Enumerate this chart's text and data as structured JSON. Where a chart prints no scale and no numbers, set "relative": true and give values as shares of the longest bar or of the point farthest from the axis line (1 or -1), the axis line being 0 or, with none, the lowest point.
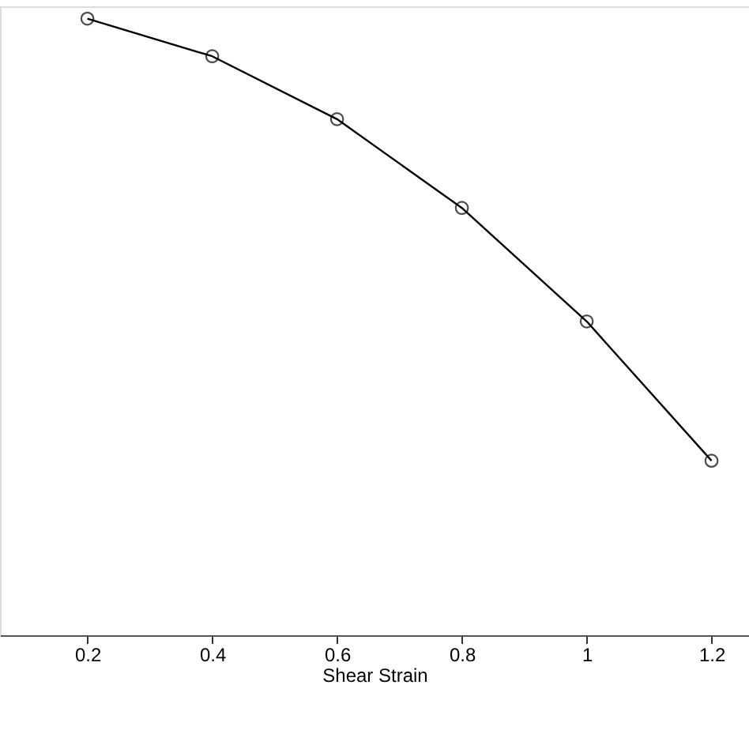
{
  "chart_data": {
    "type": "line",
    "xlabel": "Shear Strain",
    "relative": true,
    "x": [
      0.2,
      0.4,
      0.6,
      0.8,
      1.0,
      1.2
    ],
    "series": [
      {
        "color": "#000000",
        "values": [
          1,
          0.939,
          0.837,
          0.693,
          0.509,
          0.283
        ]
      }
    ],
    "xlim": [
      0.06,
      1.26
    ],
    "xticks": [
      0.2,
      0.4,
      0.6,
      0.8,
      1,
      1.2
    ],
    "tick_labels": "x",
    "marker": "circle",
    "line_style": "solid",
    "grid": false,
    "legend": false
  }
}
